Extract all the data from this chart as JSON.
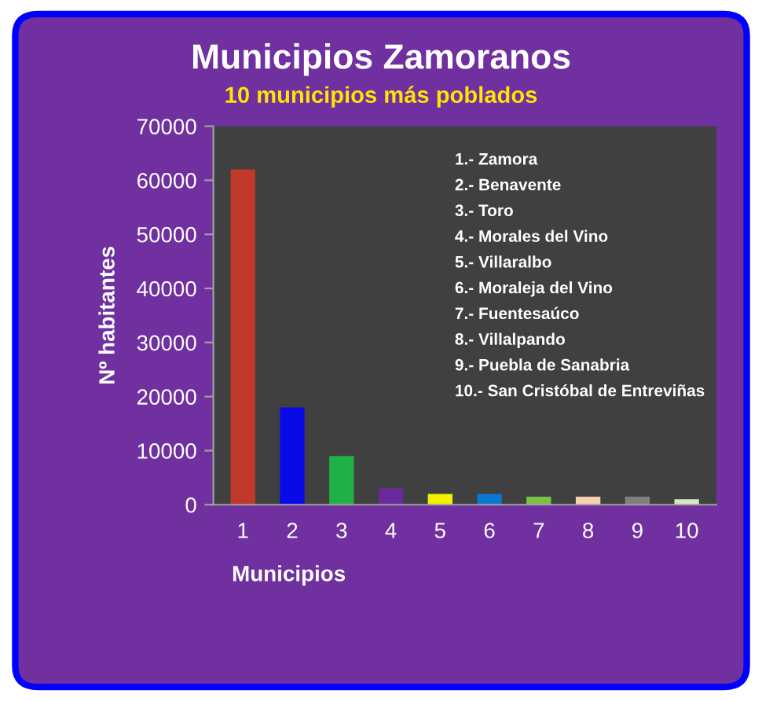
{
  "chart_data": {
    "type": "bar",
    "title": "Municipios Zamoranos",
    "subtitle": "10 municipios más poblados",
    "xlabel": "Municipios",
    "ylabel": "Nº habitantes",
    "categories": [
      "1",
      "2",
      "3",
      "4",
      "5",
      "6",
      "7",
      "8",
      "9",
      "10"
    ],
    "values": [
      62000,
      18000,
      9000,
      3000,
      2000,
      2000,
      1500,
      1500,
      1500,
      1000
    ],
    "colors": [
      "#c0392b",
      "#0a0ae6",
      "#1fb04a",
      "#6a2a9e",
      "#f2f200",
      "#0a78d2",
      "#7ac143",
      "#f5cfae",
      "#808080",
      "#d4e8c4"
    ],
    "ylim": [
      0,
      70000
    ],
    "yticks": [
      0,
      10000,
      20000,
      30000,
      40000,
      50000,
      60000,
      70000
    ],
    "annotations": [
      "1.- Zamora",
      "2.- Benavente",
      "3.- Toro",
      "4.- Morales del Vino",
      "5.- Villaralbo",
      "6.- Moraleja del Vino",
      "7.- Fuentesaúco",
      "8.- Villalpando",
      "9.- Puebla de Sanabria",
      "10.- San Cristóbal de Entreviñas"
    ]
  }
}
